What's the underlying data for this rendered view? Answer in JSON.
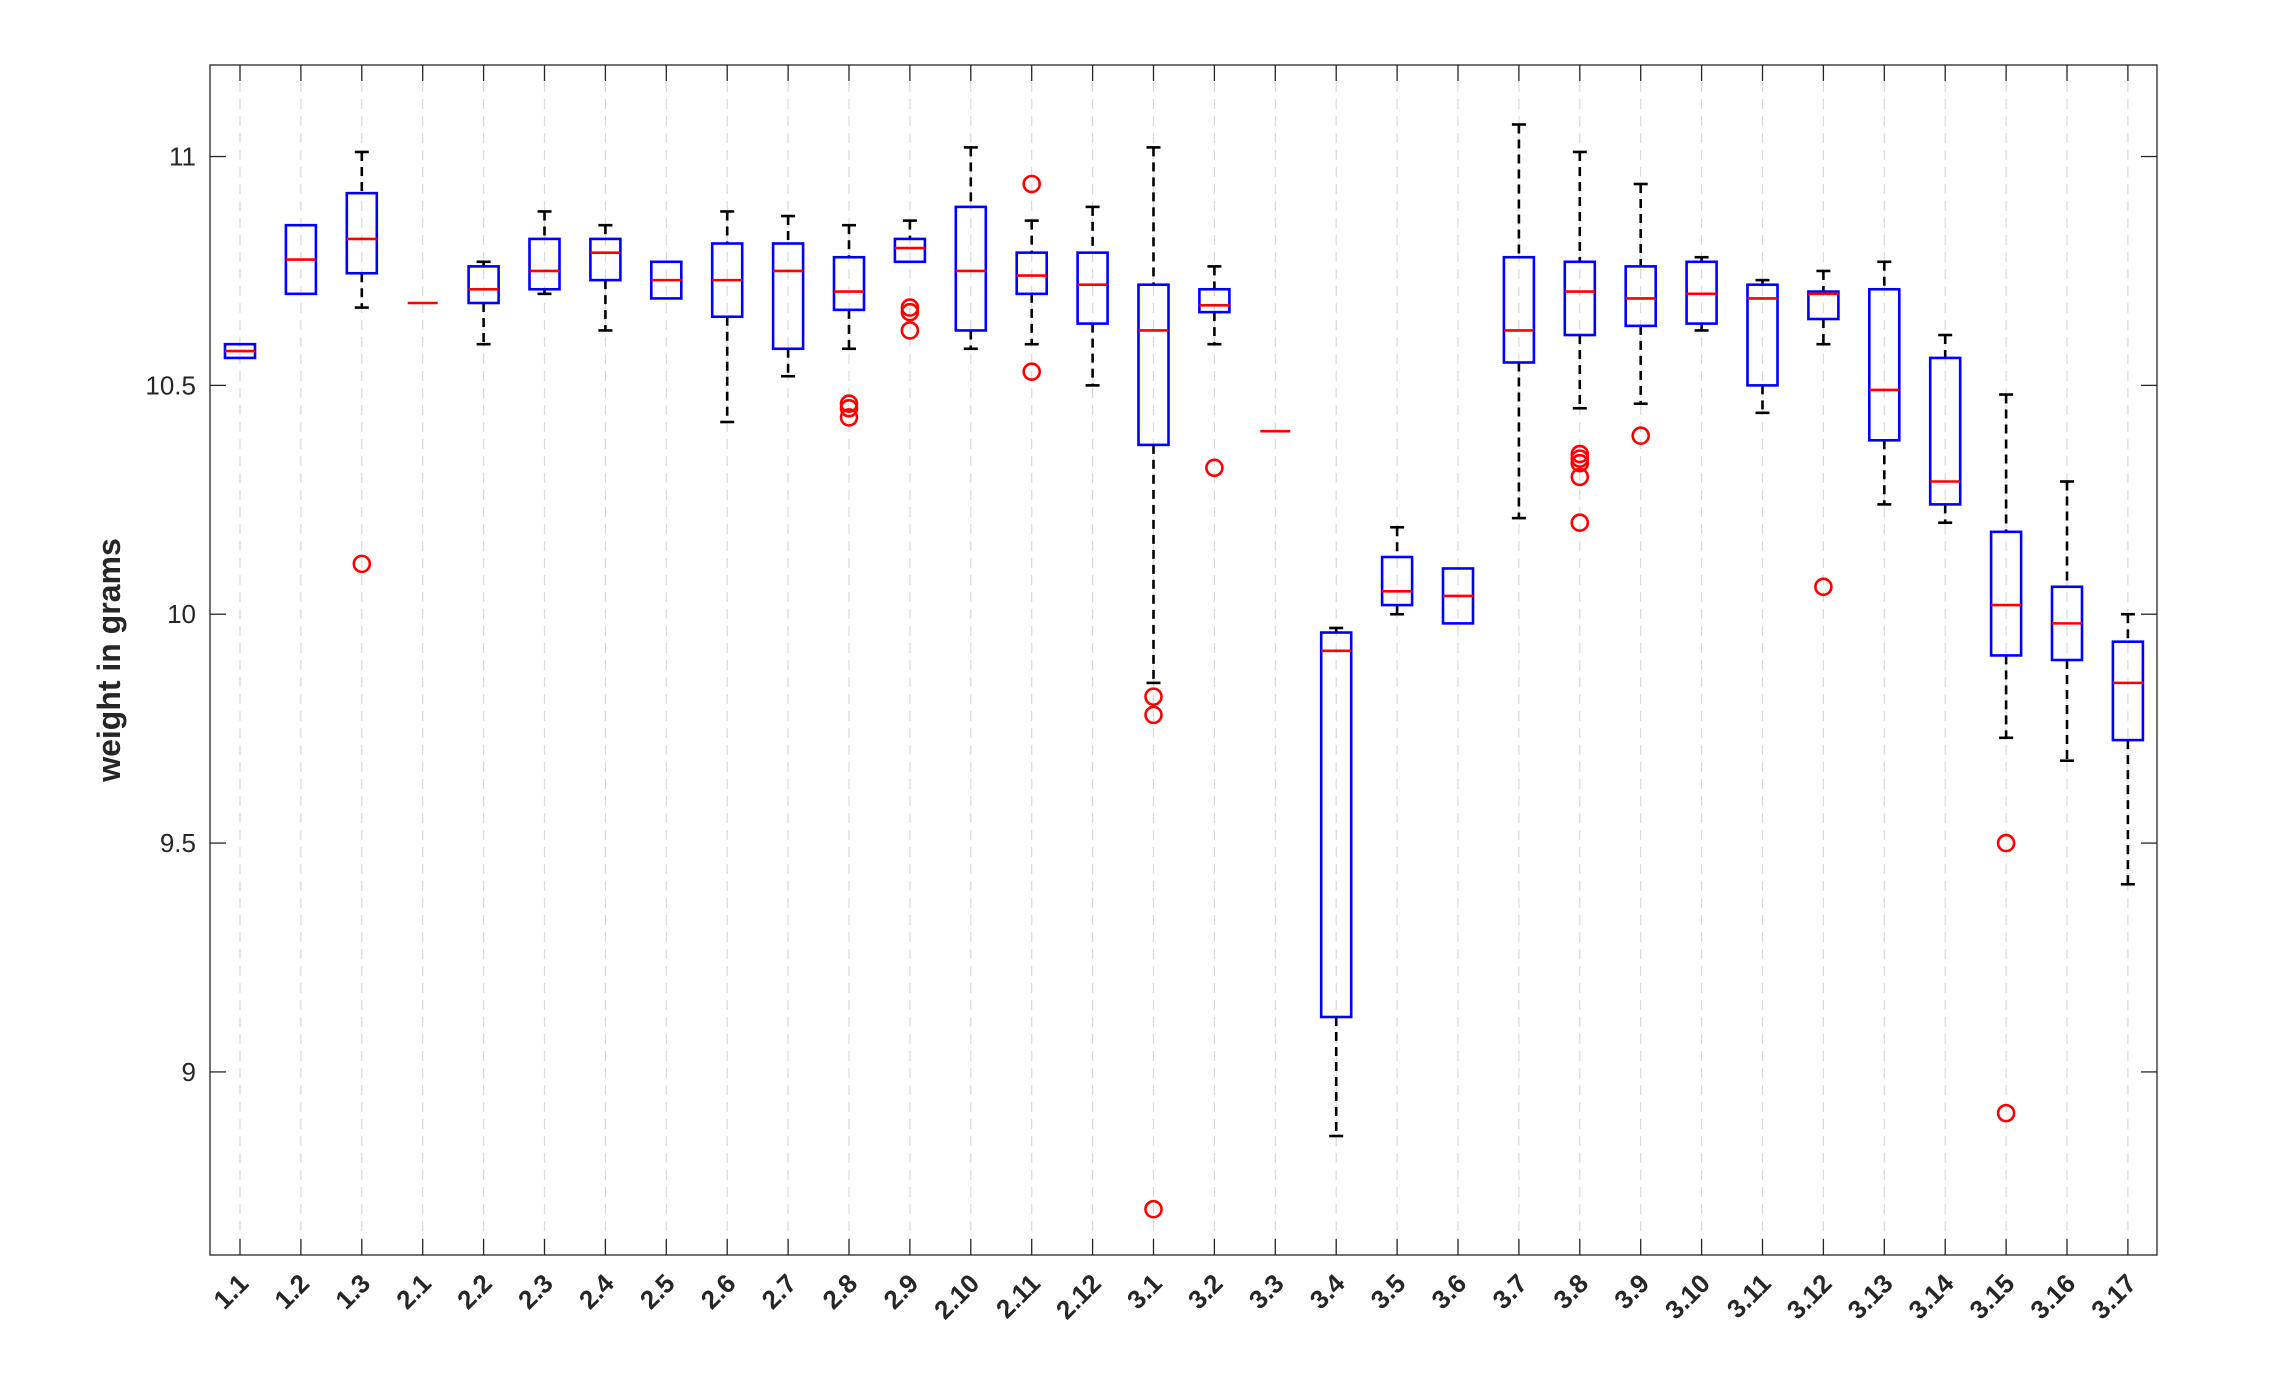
{
  "chart_data": {
    "type": "box",
    "title": "",
    "xlabel": "",
    "ylabel": "weight in grams",
    "ylim": [
      8.6,
      11.2
    ],
    "yticks": [
      9,
      9.5,
      10,
      10.5,
      11
    ],
    "ytick_labels": [
      "9",
      "9.5",
      "10",
      "10.5",
      "11"
    ],
    "grid": "vertical dashed",
    "colors": {
      "box": "#0000ff",
      "median": "#ff0000",
      "whisker": "#000000",
      "outlier": "#ff0000",
      "grid": "#d9d9d9"
    },
    "categories": [
      "1.1",
      "1.2",
      "1.3",
      "2.1",
      "2.2",
      "2.3",
      "2.4",
      "2.5",
      "2.6",
      "2.7",
      "2.8",
      "2.9",
      "2.10",
      "2.11",
      "2.12",
      "3.1",
      "3.2",
      "3.3",
      "3.4",
      "3.5",
      "3.6",
      "3.7",
      "3.8",
      "3.9",
      "3.10",
      "3.11",
      "3.12",
      "3.13",
      "3.14",
      "3.15",
      "3.16",
      "3.17"
    ],
    "boxes": [
      {
        "label": "1.1",
        "whisker_low": 10.56,
        "q1": 10.56,
        "median": 10.575,
        "q3": 10.59,
        "whisker_high": 10.59,
        "outliers": []
      },
      {
        "label": "1.2",
        "whisker_low": 10.7,
        "q1": 10.7,
        "median": 10.775,
        "q3": 10.85,
        "whisker_high": 10.85,
        "outliers": []
      },
      {
        "label": "1.3",
        "whisker_low": 10.67,
        "q1": 10.745,
        "median": 10.82,
        "q3": 10.92,
        "whisker_high": 11.01,
        "outliers": [
          10.11
        ]
      },
      {
        "label": "2.1",
        "whisker_low": 10.68,
        "q1": 10.68,
        "median": 10.68,
        "q3": 10.68,
        "whisker_high": 10.68,
        "outliers": []
      },
      {
        "label": "2.2",
        "whisker_low": 10.59,
        "q1": 10.68,
        "median": 10.71,
        "q3": 10.76,
        "whisker_high": 10.77,
        "outliers": []
      },
      {
        "label": "2.3",
        "whisker_low": 10.7,
        "q1": 10.71,
        "median": 10.75,
        "q3": 10.82,
        "whisker_high": 10.88,
        "outliers": []
      },
      {
        "label": "2.4",
        "whisker_low": 10.62,
        "q1": 10.73,
        "median": 10.79,
        "q3": 10.82,
        "whisker_high": 10.85,
        "outliers": []
      },
      {
        "label": "2.5",
        "whisker_low": 10.69,
        "q1": 10.69,
        "median": 10.73,
        "q3": 10.77,
        "whisker_high": 10.77,
        "outliers": []
      },
      {
        "label": "2.6",
        "whisker_low": 10.42,
        "q1": 10.65,
        "median": 10.73,
        "q3": 10.81,
        "whisker_high": 10.88,
        "outliers": []
      },
      {
        "label": "2.7",
        "whisker_low": 10.52,
        "q1": 10.58,
        "median": 10.75,
        "q3": 10.81,
        "whisker_high": 10.87,
        "outliers": []
      },
      {
        "label": "2.8",
        "whisker_low": 10.58,
        "q1": 10.665,
        "median": 10.705,
        "q3": 10.78,
        "whisker_high": 10.85,
        "outliers": [
          10.43,
          10.45,
          10.46
        ]
      },
      {
        "label": "2.9",
        "whisker_low": 10.77,
        "q1": 10.77,
        "median": 10.8,
        "q3": 10.82,
        "whisker_high": 10.86,
        "outliers": [
          10.62,
          10.66,
          10.67
        ]
      },
      {
        "label": "2.10",
        "whisker_low": 10.58,
        "q1": 10.62,
        "median": 10.75,
        "q3": 10.89,
        "whisker_high": 11.02,
        "outliers": []
      },
      {
        "label": "2.11",
        "whisker_low": 10.59,
        "q1": 10.7,
        "median": 10.74,
        "q3": 10.79,
        "whisker_high": 10.86,
        "outliers": [
          10.53,
          10.94
        ]
      },
      {
        "label": "2.12",
        "whisker_low": 10.5,
        "q1": 10.635,
        "median": 10.72,
        "q3": 10.79,
        "whisker_high": 10.89,
        "outliers": []
      },
      {
        "label": "3.1",
        "whisker_low": 9.85,
        "q1": 10.37,
        "median": 10.62,
        "q3": 10.72,
        "whisker_high": 11.02,
        "outliers": [
          9.82,
          9.78,
          8.7
        ]
      },
      {
        "label": "3.2",
        "whisker_low": 10.59,
        "q1": 10.66,
        "median": 10.675,
        "q3": 10.71,
        "whisker_high": 10.76,
        "outliers": [
          10.32
        ]
      },
      {
        "label": "3.3",
        "whisker_low": 10.4,
        "q1": 10.4,
        "median": 10.4,
        "q3": 10.4,
        "whisker_high": 10.4,
        "outliers": []
      },
      {
        "label": "3.4",
        "whisker_low": 8.86,
        "q1": 9.12,
        "median": 9.92,
        "q3": 9.96,
        "whisker_high": 9.97,
        "outliers": []
      },
      {
        "label": "3.5",
        "whisker_low": 10.0,
        "q1": 10.02,
        "median": 10.05,
        "q3": 10.125,
        "whisker_high": 10.19,
        "outliers": []
      },
      {
        "label": "3.6",
        "whisker_low": 9.98,
        "q1": 9.98,
        "median": 10.04,
        "q3": 10.1,
        "whisker_high": 10.1,
        "outliers": []
      },
      {
        "label": "3.7",
        "whisker_low": 10.21,
        "q1": 10.55,
        "median": 10.62,
        "q3": 10.78,
        "whisker_high": 11.07,
        "outliers": []
      },
      {
        "label": "3.8",
        "whisker_low": 10.45,
        "q1": 10.61,
        "median": 10.705,
        "q3": 10.77,
        "whisker_high": 11.01,
        "outliers": [
          10.2,
          10.3,
          10.33,
          10.34,
          10.35
        ]
      },
      {
        "label": "3.9",
        "whisker_low": 10.46,
        "q1": 10.63,
        "median": 10.69,
        "q3": 10.76,
        "whisker_high": 10.94,
        "outliers": [
          10.39
        ]
      },
      {
        "label": "3.10",
        "whisker_low": 10.62,
        "q1": 10.635,
        "median": 10.7,
        "q3": 10.77,
        "whisker_high": 10.78,
        "outliers": []
      },
      {
        "label": "3.11",
        "whisker_low": 10.44,
        "q1": 10.5,
        "median": 10.69,
        "q3": 10.72,
        "whisker_high": 10.73,
        "outliers": []
      },
      {
        "label": "3.12",
        "whisker_low": 10.59,
        "q1": 10.645,
        "median": 10.7,
        "q3": 10.705,
        "whisker_high": 10.75,
        "outliers": [
          10.06
        ]
      },
      {
        "label": "3.13",
        "whisker_low": 10.24,
        "q1": 10.38,
        "median": 10.49,
        "q3": 10.71,
        "whisker_high": 10.77,
        "outliers": []
      },
      {
        "label": "3.14",
        "whisker_low": 10.2,
        "q1": 10.24,
        "median": 10.29,
        "q3": 10.56,
        "whisker_high": 10.61,
        "outliers": []
      },
      {
        "label": "3.15",
        "whisker_low": 9.73,
        "q1": 9.91,
        "median": 10.02,
        "q3": 10.18,
        "whisker_high": 10.48,
        "outliers": [
          9.5,
          8.91
        ]
      },
      {
        "label": "3.16",
        "whisker_low": 9.68,
        "q1": 9.9,
        "median": 9.98,
        "q3": 10.06,
        "whisker_high": 10.29,
        "outliers": []
      },
      {
        "label": "3.17",
        "whisker_low": 9.41,
        "q1": 9.725,
        "median": 9.85,
        "q3": 9.94,
        "whisker_high": 10.0,
        "outliers": []
      }
    ]
  }
}
